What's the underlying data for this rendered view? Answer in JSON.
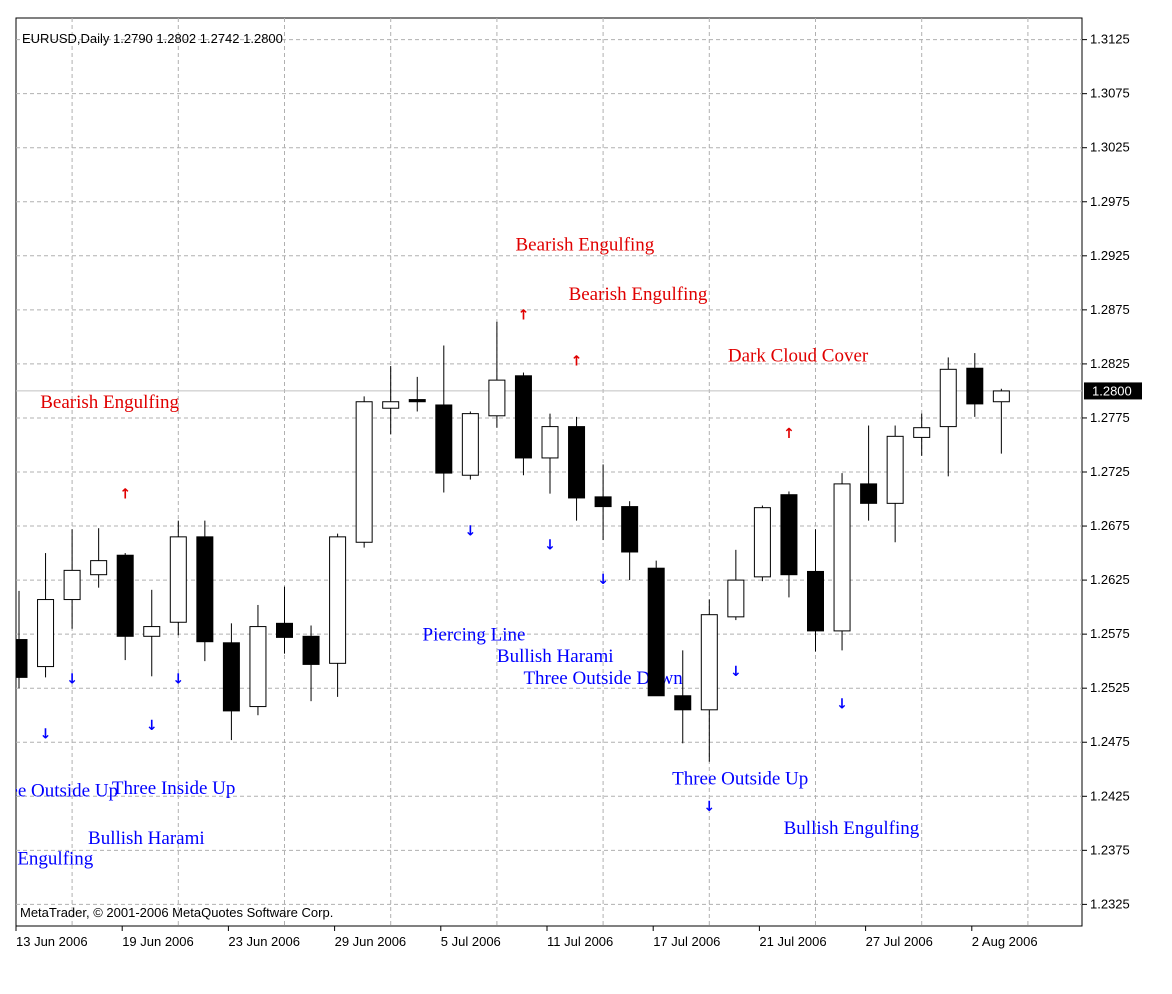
{
  "chart_info": {
    "symbol_line": "EURUSD,Daily  1.2790 1.2802 1.2742 1.2800",
    "copyright": "MetaTrader, © 2001-2006 MetaQuotes Software Corp."
  },
  "colors": {
    "bullish_pattern": "#0000ff",
    "bearish_pattern": "#e00000",
    "grid": "#b0b0b0",
    "up_candle_fill": "#ffffff",
    "down_candle_fill": "#000000",
    "price_line": "#c0c0c0",
    "current_price_bg": "#000000"
  },
  "chart_data": {
    "type": "candlestick",
    "title": "EURUSD,Daily",
    "grid": true,
    "ylim": [
      1.2305,
      1.3145
    ],
    "y_ticks": [
      "1.3125",
      "1.3075",
      "1.3025",
      "1.2975",
      "1.2925",
      "1.2875",
      "1.2825",
      "1.2775",
      "1.2725",
      "1.2675",
      "1.2625",
      "1.2575",
      "1.2525",
      "1.2475",
      "1.2425",
      "1.2375",
      "1.2325"
    ],
    "x_labels": [
      "13 Jun 2006",
      "19 Jun 2006",
      "23 Jun 2006",
      "29 Jun 2006",
      "5 Jul 2006",
      "11 Jul 2006",
      "17 Jul 2006",
      "21 Jul 2006",
      "27 Jul 2006",
      "2 Aug 2006"
    ],
    "current_price": "1.2800",
    "candles": [
      {
        "o": 1.257,
        "h": 1.2615,
        "l": 1.2525,
        "c": 1.2535
      },
      {
        "o": 1.2545,
        "h": 1.265,
        "l": 1.2535,
        "c": 1.2607
      },
      {
        "o": 1.2607,
        "h": 1.2672,
        "l": 1.258,
        "c": 1.2634
      },
      {
        "o": 1.263,
        "h": 1.2673,
        "l": 1.2618,
        "c": 1.2643
      },
      {
        "o": 1.2648,
        "h": 1.265,
        "l": 1.2551,
        "c": 1.2573
      },
      {
        "o": 1.2573,
        "h": 1.2616,
        "l": 1.2536,
        "c": 1.2582
      },
      {
        "o": 1.2586,
        "h": 1.268,
        "l": 1.2574,
        "c": 1.2665
      },
      {
        "o": 1.2665,
        "h": 1.268,
        "l": 1.255,
        "c": 1.2568
      },
      {
        "o": 1.2567,
        "h": 1.2585,
        "l": 1.2477,
        "c": 1.2504
      },
      {
        "o": 1.2508,
        "h": 1.2602,
        "l": 1.25,
        "c": 1.2582
      },
      {
        "o": 1.2585,
        "h": 1.2619,
        "l": 1.2557,
        "c": 1.2572
      },
      {
        "o": 1.2573,
        "h": 1.2583,
        "l": 1.2513,
        "c": 1.2547
      },
      {
        "o": 1.2548,
        "h": 1.2668,
        "l": 1.2517,
        "c": 1.2665
      },
      {
        "o": 1.266,
        "h": 1.2795,
        "l": 1.2655,
        "c": 1.279
      },
      {
        "o": 1.2784,
        "h": 1.2823,
        "l": 1.276,
        "c": 1.279
      },
      {
        "o": 1.2792,
        "h": 1.2813,
        "l": 1.2781,
        "c": 1.279
      },
      {
        "o": 1.2787,
        "h": 1.2842,
        "l": 1.2706,
        "c": 1.2724
      },
      {
        "o": 1.2722,
        "h": 1.2781,
        "l": 1.2718,
        "c": 1.2779
      },
      {
        "o": 1.2777,
        "h": 1.2864,
        "l": 1.2766,
        "c": 1.281
      },
      {
        "o": 1.2814,
        "h": 1.2817,
        "l": 1.2722,
        "c": 1.2738
      },
      {
        "o": 1.2738,
        "h": 1.2779,
        "l": 1.2705,
        "c": 1.2767
      },
      {
        "o": 1.2767,
        "h": 1.2776,
        "l": 1.268,
        "c": 1.2701
      },
      {
        "o": 1.2702,
        "h": 1.2732,
        "l": 1.2662,
        "c": 1.2693
      },
      {
        "o": 1.2693,
        "h": 1.2698,
        "l": 1.2625,
        "c": 1.2651
      },
      {
        "o": 1.2636,
        "h": 1.2643,
        "l": 1.2518,
        "c": 1.2518
      },
      {
        "o": 1.2518,
        "h": 1.256,
        "l": 1.2474,
        "c": 1.2505
      },
      {
        "o": 1.2505,
        "h": 1.2607,
        "l": 1.2457,
        "c": 1.2593
      },
      {
        "o": 1.2591,
        "h": 1.2653,
        "l": 1.2588,
        "c": 1.2625
      },
      {
        "o": 1.2628,
        "h": 1.2694,
        "l": 1.2624,
        "c": 1.2692
      },
      {
        "o": 1.2704,
        "h": 1.2707,
        "l": 1.2609,
        "c": 1.263
      },
      {
        "o": 1.2633,
        "h": 1.2672,
        "l": 1.2559,
        "c": 1.2578
      },
      {
        "o": 1.2578,
        "h": 1.2724,
        "l": 1.256,
        "c": 1.2714
      },
      {
        "o": 1.2714,
        "h": 1.2768,
        "l": 1.268,
        "c": 1.2696
      },
      {
        "o": 1.2696,
        "h": 1.2768,
        "l": 1.266,
        "c": 1.2758
      },
      {
        "o": 1.2757,
        "h": 1.2779,
        "l": 1.274,
        "c": 1.2766
      },
      {
        "o": 1.2767,
        "h": 1.2831,
        "l": 1.2721,
        "c": 1.282
      },
      {
        "o": 1.2821,
        "h": 1.2835,
        "l": 1.2776,
        "c": 1.2788
      },
      {
        "o": 1.279,
        "h": 1.2802,
        "l": 1.2742,
        "c": 1.28
      }
    ],
    "arrows": [
      {
        "bar": 1,
        "p": 1.2482,
        "kind": "bull"
      },
      {
        "bar": 2,
        "p": 1.2533,
        "kind": "bull"
      },
      {
        "bar": 4,
        "p": 1.2704,
        "kind": "bear"
      },
      {
        "bar": 5,
        "p": 1.249,
        "kind": "bull"
      },
      {
        "bar": 6,
        "p": 1.2533,
        "kind": "bull"
      },
      {
        "bar": 17,
        "p": 1.267,
        "kind": "bull"
      },
      {
        "bar": 19,
        "p": 1.287,
        "kind": "bear"
      },
      {
        "bar": 20,
        "p": 1.2657,
        "kind": "bull"
      },
      {
        "bar": 21,
        "p": 1.2827,
        "kind": "bear"
      },
      {
        "bar": 22,
        "p": 1.2625,
        "kind": "bull"
      },
      {
        "bar": 26,
        "p": 1.2415,
        "kind": "bull"
      },
      {
        "bar": 27,
        "p": 1.254,
        "kind": "bull"
      },
      {
        "bar": 29,
        "p": 1.276,
        "kind": "bear"
      },
      {
        "bar": 31,
        "p": 1.251,
        "kind": "bull"
      }
    ],
    "annotations": [
      {
        "text": "Bearish Engulfing",
        "kind": "bear",
        "p": 1.293,
        "bar": 18.7
      },
      {
        "text": "Bearish Engulfing",
        "kind": "bear",
        "p": 1.2884,
        "bar": 20.7
      },
      {
        "text": "Dark Cloud Cover",
        "kind": "bear",
        "p": 1.2827,
        "bar": 26.7
      },
      {
        "text": "Bearish Engulfing",
        "kind": "bear",
        "p": 1.2784,
        "bar": 0.8
      },
      {
        "text": "Piercing Line",
        "kind": "bull",
        "p": 1.2569,
        "bar": 15.2
      },
      {
        "text": "Bullish Harami",
        "kind": "bull",
        "p": 1.2549,
        "bar": 18.0
      },
      {
        "text": "Three Outside Down",
        "kind": "bull",
        "p": 1.2529,
        "bar": 19.0
      },
      {
        "text": "Three Outside Up",
        "kind": "bull",
        "p": 1.2436,
        "bar": 24.6
      },
      {
        "text": "Three Inside Up",
        "kind": "bull",
        "p": 1.2427,
        "bar": 3.5
      },
      {
        "text": "ree Outside Up",
        "kind": "bull",
        "p": 1.2425,
        "bar": -0.6
      },
      {
        "text": "Bullish Harami",
        "kind": "bull",
        "p": 1.2381,
        "bar": 2.6
      },
      {
        "text": "Bullish Engulfing",
        "kind": "bull",
        "p": 1.239,
        "bar": 28.8
      },
      {
        "text": "h Engulfing",
        "kind": "bull",
        "p": 1.2362,
        "bar": -0.6
      }
    ]
  }
}
